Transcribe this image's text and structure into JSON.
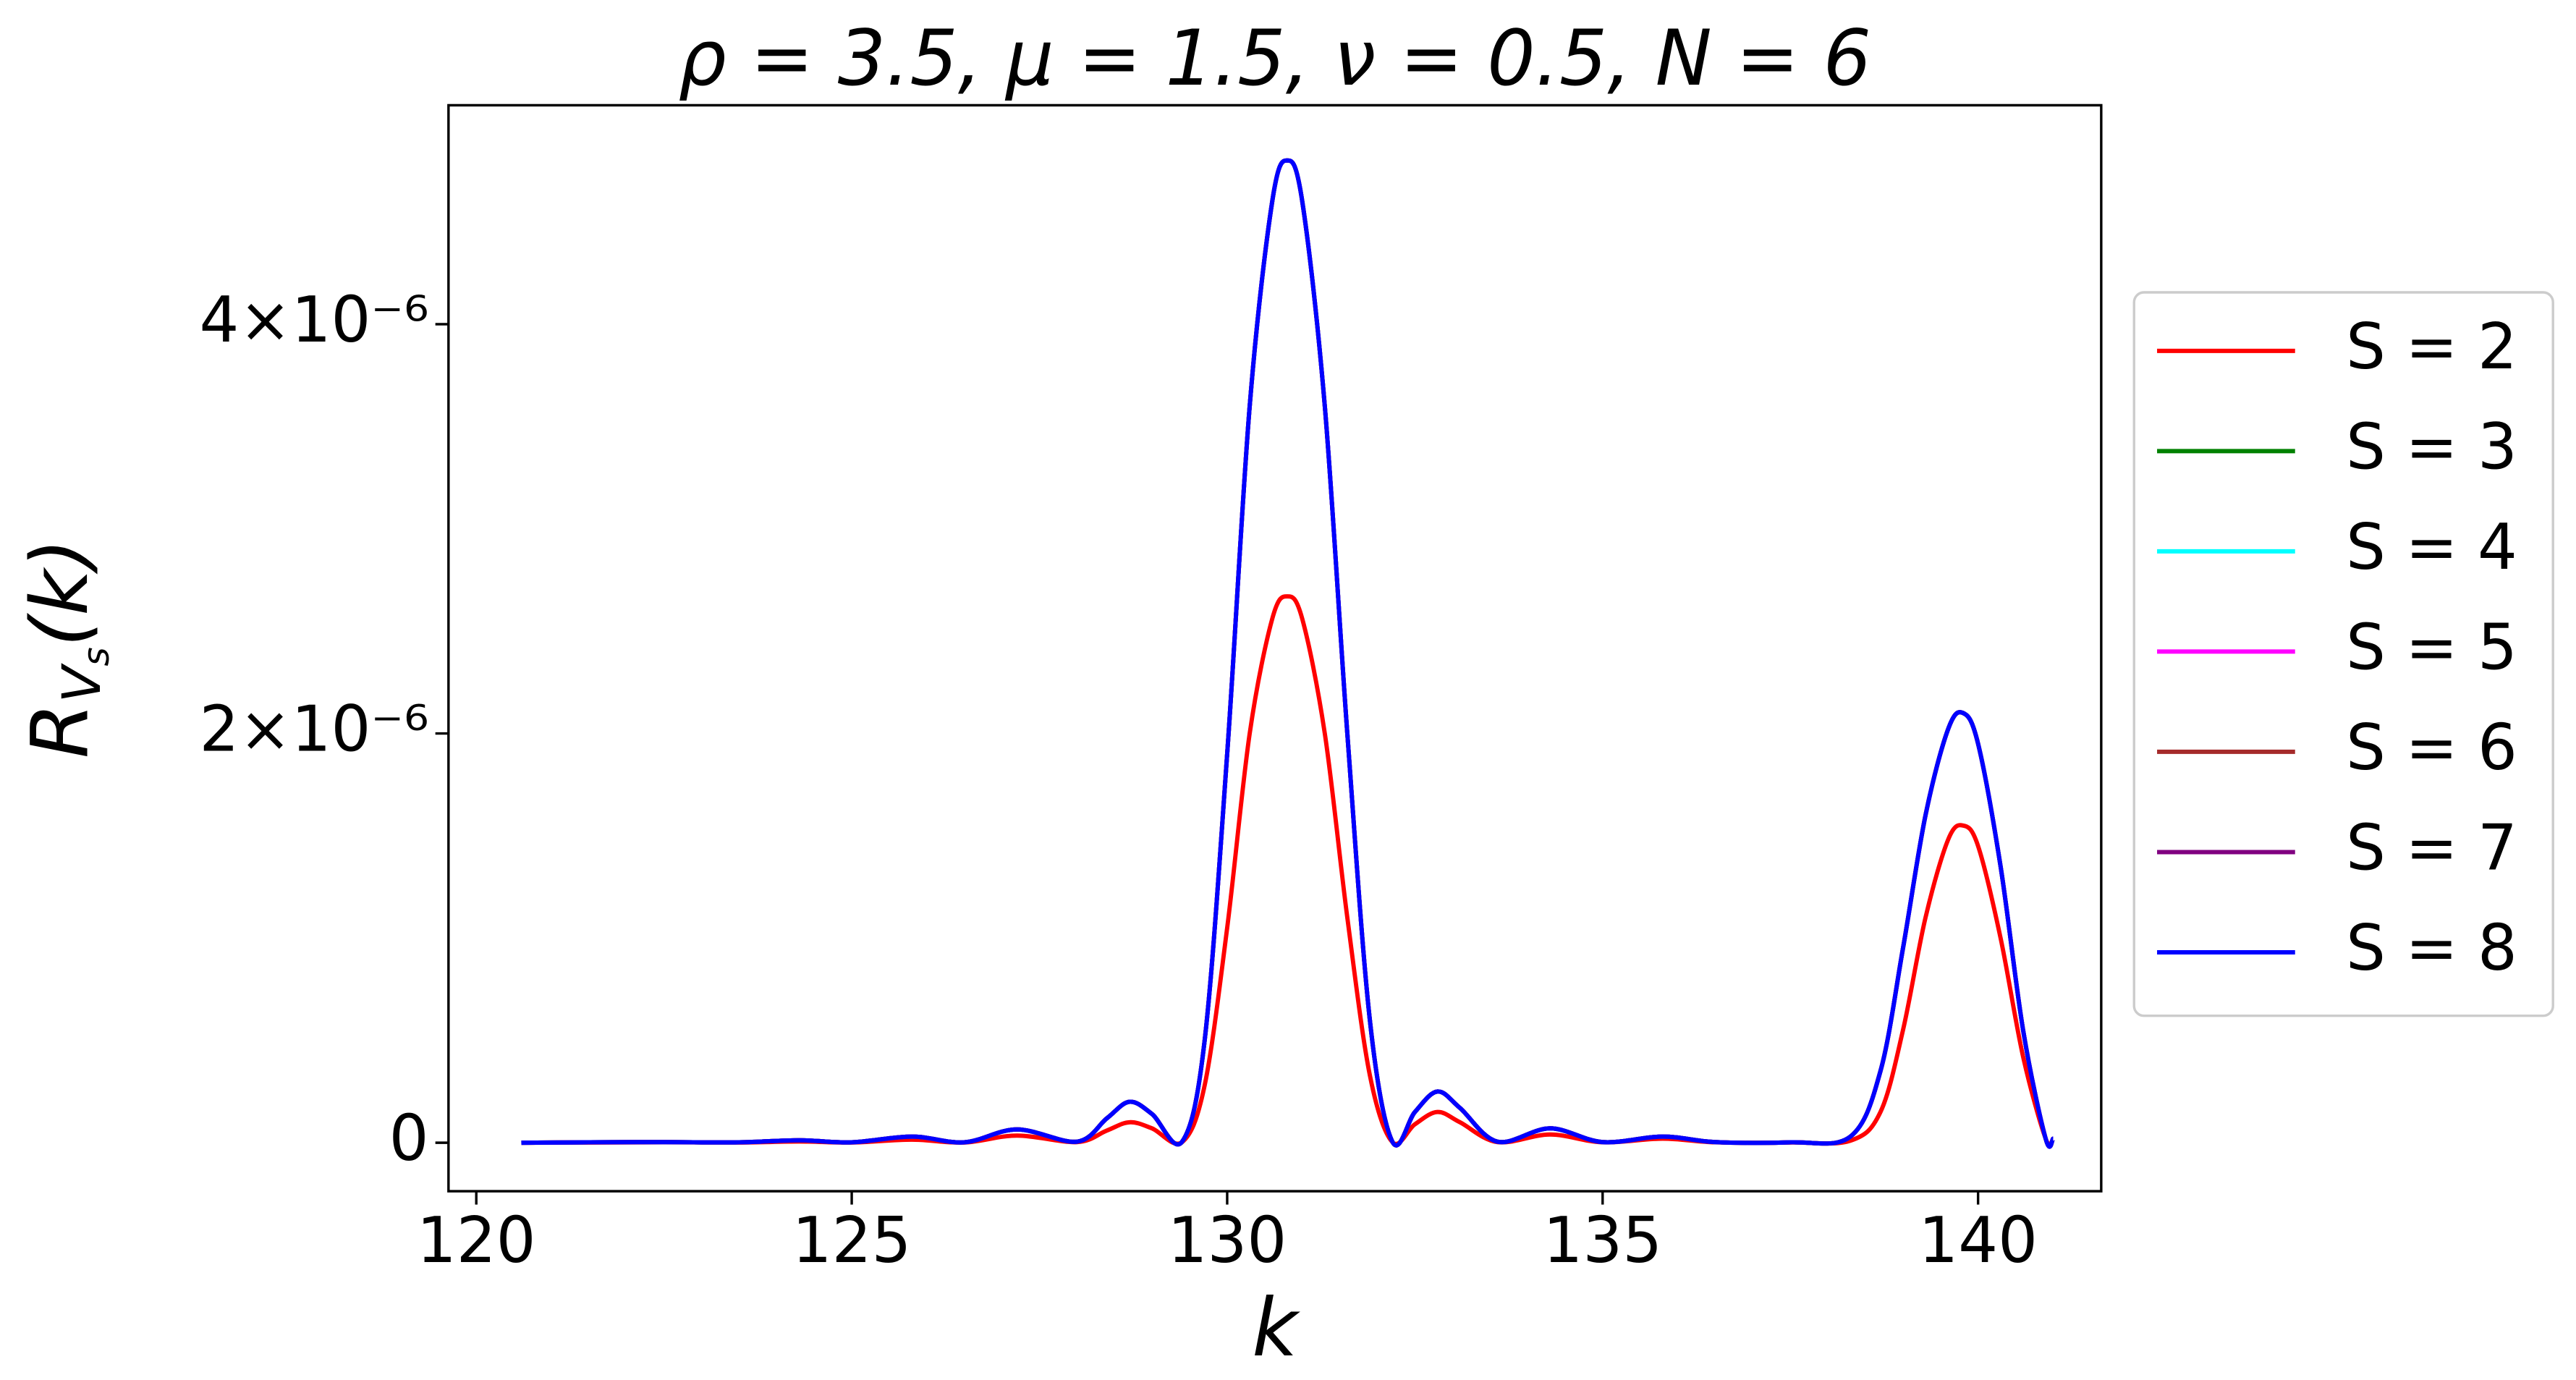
{
  "chart_data": {
    "type": "line",
    "title": "ρ = 3.5, μ = 1.5, ν = 0.5, N = 6",
    "xlabel": "k",
    "ylabel": {
      "base": "R",
      "sub": "V",
      "subsub": "s",
      "tail": "(k)"
    },
    "xlim": [
      119.63,
      141.64
    ],
    "ylim": [
      -2.37e-07,
      5.07e-06
    ],
    "xticks": [
      120,
      125,
      130,
      135,
      140
    ],
    "yticks": [
      0,
      {
        "value": 2e-06,
        "label": "2×10⁻⁶"
      },
      {
        "value": 4e-06,
        "label": "4×10⁻⁶"
      }
    ],
    "grid": false,
    "legend": "outside right",
    "x": [
      120.6,
      121.5,
      122.5,
      123.5,
      124.3,
      125.0,
      125.8,
      126.5,
      127.2,
      128.0,
      128.4,
      128.7,
      129.0,
      129.4,
      129.7,
      130.0,
      130.3,
      130.6,
      130.8,
      131.0,
      131.3,
      131.6,
      131.9,
      132.2,
      132.5,
      132.8,
      133.1,
      133.6,
      134.3,
      135.0,
      135.8,
      136.5,
      137.5,
      138.3,
      138.7,
      139.0,
      139.3,
      139.6,
      139.8,
      140.0,
      140.3,
      140.6,
      140.9,
      141.0
    ],
    "series": [
      {
        "name": "S = 2",
        "color": "#ff0000",
        "values": [
          0,
          1e-09,
          2e-09,
          1e-09,
          6e-09,
          1e-09,
          1.5e-08,
          1e-09,
          3.5e-08,
          3e-09,
          6e-08,
          1e-07,
          7e-08,
          3e-09,
          2.8e-07,
          1.05e-06,
          2e-06,
          2.56e-06,
          2.67e-06,
          2.56e-06,
          2e-06,
          1.1e-06,
          3.3e-07,
          3e-09,
          9e-08,
          1.5e-07,
          1e-07,
          3e-09,
          4e-08,
          2e-09,
          2e-08,
          2e-09,
          1e-09,
          1e-08,
          1.5e-07,
          5.5e-07,
          1.1e-06,
          1.48e-06,
          1.55e-06,
          1.45e-06,
          1e-06,
          4.2e-07,
          2e-08,
          2e-08
        ]
      },
      {
        "name": "S = 3",
        "color": "#008000",
        "values": [
          0,
          2e-09,
          3e-09,
          2e-09,
          1.2e-08,
          2e-09,
          3e-08,
          2e-09,
          6.5e-08,
          5e-09,
          1.2e-07,
          2e-07,
          1.4e-07,
          5e-09,
          5e-07,
          1.9e-06,
          3.6e-06,
          4.6e-06,
          4.8e-06,
          4.6e-06,
          3.6e-06,
          2e-06,
          6e-07,
          5e-09,
          1.5e-07,
          2.5e-07,
          1.7e-07,
          5e-09,
          7e-08,
          3e-09,
          3e-08,
          3e-09,
          2e-09,
          3e-08,
          3.5e-07,
          9.5e-07,
          1.6e-06,
          2.02e-06,
          2.1e-06,
          1.95e-06,
          1.35e-06,
          5.5e-07,
          2e-08,
          2e-08
        ]
      },
      {
        "name": "S = 4",
        "color": "#00ffff",
        "values": [
          0,
          2e-09,
          3e-09,
          2e-09,
          1.2e-08,
          2e-09,
          3e-08,
          2e-09,
          6.5e-08,
          5e-09,
          1.2e-07,
          2e-07,
          1.4e-07,
          5e-09,
          5e-07,
          1.9e-06,
          3.6e-06,
          4.6e-06,
          4.8e-06,
          4.6e-06,
          3.6e-06,
          2e-06,
          6e-07,
          5e-09,
          1.5e-07,
          2.5e-07,
          1.7e-07,
          5e-09,
          7e-08,
          3e-09,
          3e-08,
          3e-09,
          2e-09,
          3e-08,
          3.5e-07,
          9.5e-07,
          1.6e-06,
          2.02e-06,
          2.1e-06,
          1.95e-06,
          1.35e-06,
          5.5e-07,
          2e-08,
          2e-08
        ]
      },
      {
        "name": "S = 5",
        "color": "#ff00ff",
        "values": [
          0,
          2e-09,
          3e-09,
          2e-09,
          1.2e-08,
          2e-09,
          3e-08,
          2e-09,
          6.5e-08,
          5e-09,
          1.2e-07,
          2e-07,
          1.4e-07,
          5e-09,
          5e-07,
          1.9e-06,
          3.6e-06,
          4.6e-06,
          4.8e-06,
          4.6e-06,
          3.6e-06,
          2e-06,
          6e-07,
          5e-09,
          1.5e-07,
          2.5e-07,
          1.7e-07,
          5e-09,
          7e-08,
          3e-09,
          3e-08,
          3e-09,
          2e-09,
          3e-08,
          3.5e-07,
          9.5e-07,
          1.6e-06,
          2.02e-06,
          2.1e-06,
          1.95e-06,
          1.35e-06,
          5.5e-07,
          2e-08,
          2e-08
        ]
      },
      {
        "name": "S = 6",
        "color": "#a52a2a",
        "values": [
          0,
          2e-09,
          3e-09,
          2e-09,
          1.2e-08,
          2e-09,
          3e-08,
          2e-09,
          6.5e-08,
          5e-09,
          1.2e-07,
          2e-07,
          1.4e-07,
          5e-09,
          5e-07,
          1.9e-06,
          3.6e-06,
          4.6e-06,
          4.8e-06,
          4.6e-06,
          3.6e-06,
          2e-06,
          6e-07,
          5e-09,
          1.5e-07,
          2.5e-07,
          1.7e-07,
          5e-09,
          7e-08,
          3e-09,
          3e-08,
          3e-09,
          2e-09,
          3e-08,
          3.5e-07,
          9.5e-07,
          1.6e-06,
          2.02e-06,
          2.1e-06,
          1.95e-06,
          1.35e-06,
          5.5e-07,
          2e-08,
          2e-08
        ]
      },
      {
        "name": "S = 7",
        "color": "#800080",
        "values": [
          0,
          2e-09,
          3e-09,
          2e-09,
          1.2e-08,
          2e-09,
          3e-08,
          2e-09,
          6.5e-08,
          5e-09,
          1.2e-07,
          2e-07,
          1.4e-07,
          5e-09,
          5e-07,
          1.9e-06,
          3.6e-06,
          4.6e-06,
          4.8e-06,
          4.6e-06,
          3.6e-06,
          2e-06,
          6e-07,
          5e-09,
          1.5e-07,
          2.5e-07,
          1.7e-07,
          5e-09,
          7e-08,
          3e-09,
          3e-08,
          3e-09,
          2e-09,
          3e-08,
          3.5e-07,
          9.5e-07,
          1.6e-06,
          2.02e-06,
          2.1e-06,
          1.95e-06,
          1.35e-06,
          5.5e-07,
          2e-08,
          2e-08
        ]
      },
      {
        "name": "S = 8",
        "color": "#0000ff",
        "values": [
          0,
          2e-09,
          3e-09,
          2e-09,
          1.2e-08,
          2e-09,
          3e-08,
          2e-09,
          6.5e-08,
          5e-09,
          1.2e-07,
          2e-07,
          1.4e-07,
          5e-09,
          5e-07,
          1.9e-06,
          3.6e-06,
          4.6e-06,
          4.8e-06,
          4.6e-06,
          3.6e-06,
          2e-06,
          6e-07,
          5e-09,
          1.5e-07,
          2.5e-07,
          1.7e-07,
          5e-09,
          7e-08,
          3e-09,
          3e-08,
          3e-09,
          2e-09,
          3e-08,
          3.5e-07,
          9.5e-07,
          1.6e-06,
          2.02e-06,
          2.1e-06,
          1.95e-06,
          1.35e-06,
          5.5e-07,
          2e-08,
          2e-08
        ]
      }
    ]
  }
}
